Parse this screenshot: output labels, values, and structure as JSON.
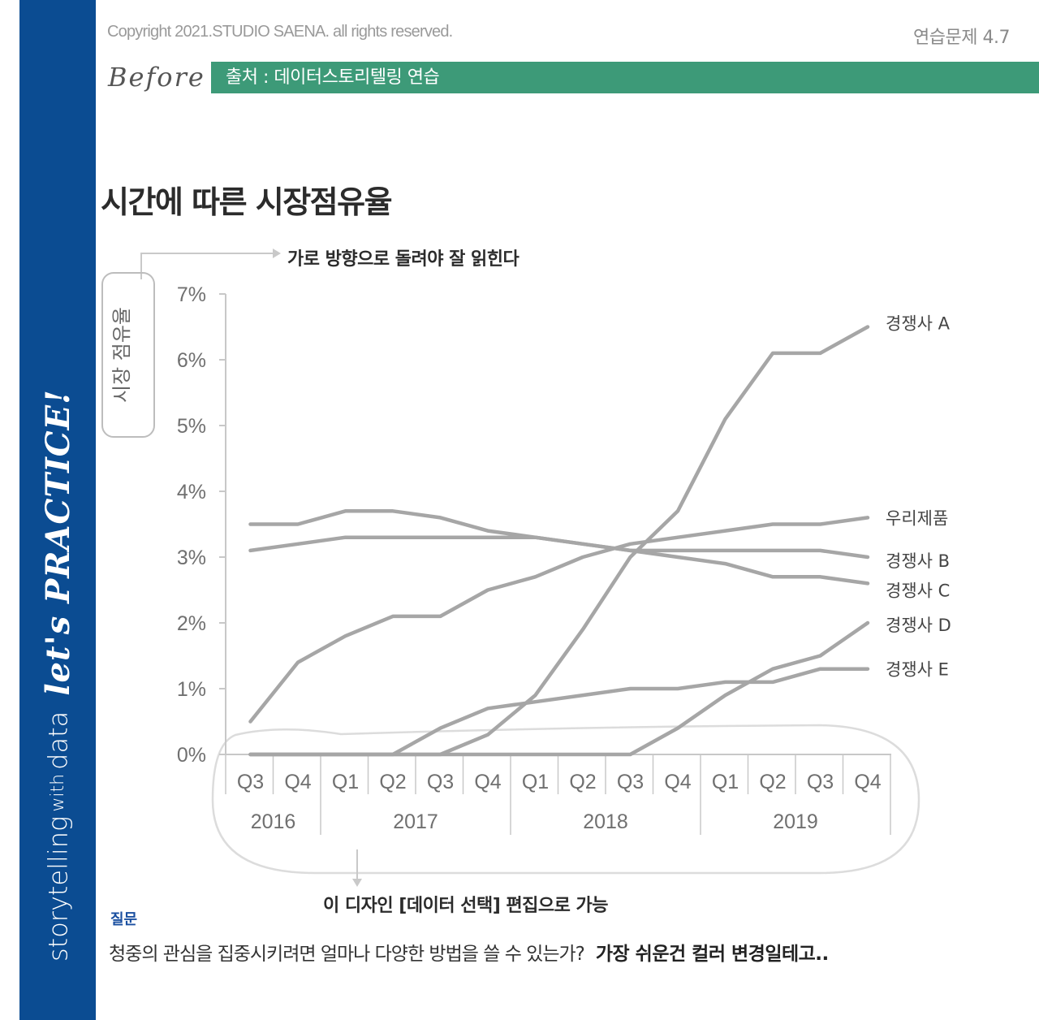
{
  "header": {
    "copyright": "Copyright 2021.STUDIO SAENA. all rights reserved.",
    "exercise": "연습문제 4.7",
    "before": "Before",
    "source": "출처 : 데이터스토리텔링 연습"
  },
  "sidebar": {
    "text_main": "storytelling",
    "text_with": "with",
    "text_data": "data",
    "lets": "let's PRACTICE!"
  },
  "annotations": {
    "top": "가로 방향으로 돌려야 잘 읽힌다",
    "bottom": "이 디자인 [데이터 선택] 편집으로 가능"
  },
  "question": {
    "label": "질문",
    "text": "청중의 관심을 집중시키려면 얼마나 다양한 방법을 쓸 수 있는가?",
    "answer": "가장 쉬운건 컬러 변경일테고.."
  },
  "colors": {
    "sidebar": "#0b4c92",
    "source_bar": "#3d9a78",
    "lines": "#a6a6a6",
    "axis": "#c8c8c8"
  },
  "chart_data": {
    "type": "line",
    "title": "시간에 따른 시장점유율",
    "ylabel": "시장 점유율",
    "ylim": [
      0,
      7
    ],
    "yticks": [
      "0%",
      "1%",
      "2%",
      "3%",
      "4%",
      "5%",
      "6%",
      "7%"
    ],
    "categories": [
      "Q3",
      "Q4",
      "Q1",
      "Q2",
      "Q3",
      "Q4",
      "Q1",
      "Q2",
      "Q3",
      "Q4",
      "Q1",
      "Q2",
      "Q3",
      "Q4"
    ],
    "years": [
      {
        "label": "2016",
        "count": 2
      },
      {
        "label": "2017",
        "count": 4
      },
      {
        "label": "2018",
        "count": 4
      },
      {
        "label": "2019",
        "count": 4
      }
    ],
    "series": [
      {
        "name": "경쟁사 A",
        "values": [
          0,
          0,
          0,
          0,
          0,
          0.3,
          0.9,
          1.9,
          3.0,
          3.7,
          5.1,
          6.1,
          6.1,
          6.5
        ]
      },
      {
        "name": "우리제품",
        "values": [
          0.5,
          1.4,
          1.8,
          2.1,
          2.1,
          2.5,
          2.7,
          3.0,
          3.2,
          3.3,
          3.4,
          3.5,
          3.5,
          3.6
        ]
      },
      {
        "name": "경쟁사 B",
        "values": [
          3.1,
          3.2,
          3.3,
          3.3,
          3.3,
          3.3,
          3.3,
          3.2,
          3.1,
          3.1,
          3.1,
          3.1,
          3.1,
          3.0
        ]
      },
      {
        "name": "경쟁사 C",
        "values": [
          3.5,
          3.5,
          3.7,
          3.7,
          3.6,
          3.4,
          3.3,
          3.2,
          3.1,
          3.0,
          2.9,
          2.7,
          2.7,
          2.6
        ]
      },
      {
        "name": "경쟁사 D",
        "values": [
          0,
          0,
          0,
          0,
          0,
          0,
          0,
          0,
          0,
          0.4,
          0.9,
          1.3,
          1.5,
          2.0
        ]
      },
      {
        "name": "경쟁사 E",
        "values": [
          0,
          0,
          0,
          0,
          0.4,
          0.7,
          0.8,
          0.9,
          1.0,
          1.0,
          1.1,
          1.1,
          1.3,
          1.3
        ]
      }
    ]
  }
}
